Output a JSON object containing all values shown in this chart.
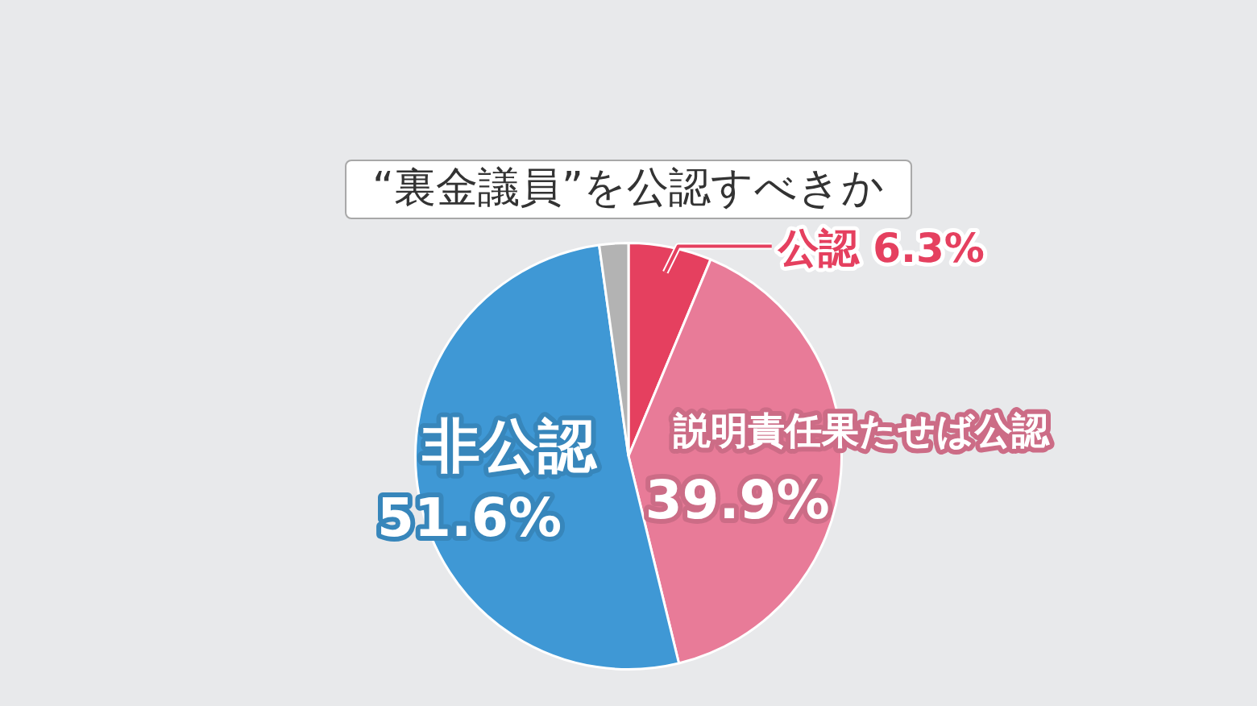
{
  "chart_data": {
    "type": "pie",
    "title": "“裏金議員”を公認すべきか",
    "categories": [
      "公認",
      "説明責任果たせば公認",
      "非公認",
      null
    ],
    "values": [
      6.3,
      39.9,
      51.6,
      2.2
    ],
    "colors": [
      "#e5405f",
      "#e87b98",
      "#3f98d5",
      "#b3b3b3"
    ],
    "value_labels": [
      "6.3%",
      "39.9%",
      "51.6%",
      null
    ]
  }
}
